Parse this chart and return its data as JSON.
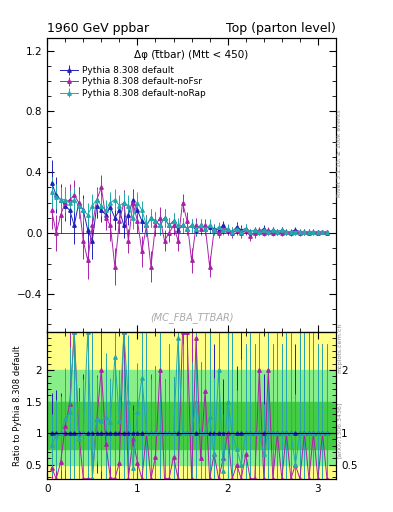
{
  "title_left": "1960 GeV ppbar",
  "title_right": "Top (parton level)",
  "annotation": "Δφ (t̅tbar) (Mtt < 450)",
  "watermark": "(MC_FBA_TTBAR)",
  "right_label_main": "Rivet 3.1.10, ≥ 100k events",
  "right_label_ratio": "[arXiv:1306.3436]",
  "mcplots_label": "mcplots.cern.ch",
  "ylabel_ratio": "Ratio to Pythia 8.308 default",
  "xlim": [
    0,
    3.2
  ],
  "ylim_main": [
    -0.65,
    1.28
  ],
  "ylim_ratio": [
    0.28,
    2.6
  ],
  "series": [
    {
      "label": "Pythia 8.308 default",
      "color": "#2222bb",
      "marker": "^",
      "x": [
        0.05,
        0.1,
        0.15,
        0.2,
        0.25,
        0.3,
        0.35,
        0.4,
        0.45,
        0.5,
        0.55,
        0.6,
        0.65,
        0.7,
        0.75,
        0.8,
        0.85,
        0.9,
        0.95,
        1.0,
        1.05,
        1.1,
        1.15,
        1.2,
        1.25,
        1.3,
        1.35,
        1.4,
        1.45,
        1.5,
        1.55,
        1.6,
        1.65,
        1.7,
        1.75,
        1.8,
        1.85,
        1.9,
        1.95,
        2.0,
        2.05,
        2.1,
        2.15,
        2.2,
        2.25,
        2.3,
        2.35,
        2.4,
        2.45,
        2.5,
        2.55,
        2.6,
        2.65,
        2.7,
        2.75,
        2.8,
        2.85,
        2.9,
        2.95,
        3.0,
        3.05,
        3.1
      ],
      "y": [
        0.33,
        0.25,
        0.22,
        0.18,
        0.15,
        0.05,
        0.2,
        0.15,
        0.02,
        -0.05,
        0.18,
        0.15,
        0.12,
        0.17,
        0.1,
        0.15,
        0.05,
        0.12,
        0.22,
        0.15,
        0.08,
        0.05,
        0.1,
        0.08,
        0.05,
        0.1,
        0.05,
        0.08,
        0.02,
        0.05,
        0.03,
        0.05,
        0.02,
        0.05,
        0.03,
        0.04,
        0.03,
        0.02,
        0.05,
        0.02,
        0.01,
        0.04,
        0.02,
        0.03,
        0.01,
        0.02,
        0.01,
        0.03,
        0.01,
        0.02,
        0.01,
        0.02,
        0.01,
        0.01,
        0.02,
        0.01,
        0.01,
        0.01,
        0.01,
        0.01,
        0.01,
        0.01
      ],
      "yerr": [
        0.15,
        0.12,
        0.1,
        0.1,
        0.1,
        0.12,
        0.1,
        0.1,
        0.12,
        0.12,
        0.08,
        0.08,
        0.08,
        0.08,
        0.08,
        0.08,
        0.08,
        0.07,
        0.07,
        0.07,
        0.07,
        0.07,
        0.06,
        0.06,
        0.06,
        0.06,
        0.05,
        0.05,
        0.05,
        0.05,
        0.04,
        0.04,
        0.04,
        0.04,
        0.04,
        0.04,
        0.03,
        0.03,
        0.03,
        0.03,
        0.03,
        0.03,
        0.03,
        0.03,
        0.02,
        0.02,
        0.02,
        0.02,
        0.02,
        0.02,
        0.02,
        0.02,
        0.02,
        0.02,
        0.02,
        0.02,
        0.02,
        0.02,
        0.02,
        0.01,
        0.01,
        0.01
      ]
    },
    {
      "label": "Pythia 8.308 default-noFsr",
      "color": "#aa22aa",
      "marker": "^",
      "x": [
        0.05,
        0.1,
        0.15,
        0.2,
        0.25,
        0.3,
        0.35,
        0.4,
        0.45,
        0.5,
        0.55,
        0.6,
        0.65,
        0.7,
        0.75,
        0.8,
        0.85,
        0.9,
        0.95,
        1.0,
        1.05,
        1.1,
        1.15,
        1.2,
        1.25,
        1.3,
        1.35,
        1.4,
        1.45,
        1.5,
        1.55,
        1.6,
        1.65,
        1.7,
        1.75,
        1.8,
        1.85,
        1.9,
        1.95,
        2.0,
        2.05,
        2.1,
        2.15,
        2.2,
        2.25,
        2.3,
        2.35,
        2.4,
        2.45,
        2.5,
        2.55,
        2.6,
        2.65,
        2.7,
        2.75,
        2.8,
        2.85,
        2.9,
        2.95,
        3.0,
        3.05,
        3.1
      ],
      "y": [
        0.15,
        0.0,
        0.12,
        0.2,
        0.22,
        0.25,
        0.2,
        -0.05,
        -0.18,
        0.05,
        0.22,
        0.3,
        0.1,
        0.05,
        -0.22,
        0.08,
        0.2,
        -0.05,
        0.2,
        0.08,
        -0.12,
        0.05,
        -0.22,
        0.05,
        0.1,
        -0.05,
        0.0,
        0.05,
        -0.05,
        0.2,
        0.08,
        -0.18,
        0.05,
        0.03,
        0.05,
        -0.22,
        0.02,
        0.0,
        0.03,
        0.02,
        0.0,
        0.02,
        0.0,
        0.02,
        -0.02,
        0.0,
        0.02,
        0.0,
        0.02,
        0.0,
        0.01,
        0.0,
        0.01,
        0.0,
        0.01,
        0.0,
        0.01,
        0.0,
        0.01,
        0.0,
        0.01,
        0.0
      ],
      "yerr": [
        0.12,
        0.12,
        0.12,
        0.1,
        0.1,
        0.1,
        0.1,
        0.12,
        0.12,
        0.1,
        0.08,
        0.08,
        0.08,
        0.1,
        0.12,
        0.08,
        0.08,
        0.08,
        0.08,
        0.08,
        0.1,
        0.07,
        0.1,
        0.07,
        0.07,
        0.07,
        0.06,
        0.06,
        0.07,
        0.06,
        0.06,
        0.08,
        0.05,
        0.04,
        0.04,
        0.07,
        0.03,
        0.03,
        0.03,
        0.03,
        0.03,
        0.03,
        0.03,
        0.03,
        0.03,
        0.03,
        0.02,
        0.02,
        0.02,
        0.02,
        0.02,
        0.02,
        0.02,
        0.02,
        0.02,
        0.02,
        0.02,
        0.01,
        0.01,
        0.01,
        0.01,
        0.01
      ]
    },
    {
      "label": "Pythia 8.308 default-noRap",
      "color": "#22aaaa",
      "marker": "^",
      "x": [
        0.05,
        0.1,
        0.15,
        0.2,
        0.25,
        0.3,
        0.35,
        0.4,
        0.45,
        0.5,
        0.55,
        0.6,
        0.65,
        0.7,
        0.75,
        0.8,
        0.85,
        0.9,
        0.95,
        1.0,
        1.05,
        1.1,
        1.15,
        1.2,
        1.25,
        1.3,
        1.35,
        1.4,
        1.45,
        1.5,
        1.55,
        1.6,
        1.65,
        1.7,
        1.75,
        1.8,
        1.85,
        1.9,
        1.95,
        2.0,
        2.05,
        2.1,
        2.15,
        2.2,
        2.25,
        2.3,
        2.35,
        2.4,
        2.45,
        2.5,
        2.55,
        2.6,
        2.65,
        2.7,
        2.75,
        2.8,
        2.85,
        2.9,
        2.95,
        3.0,
        3.05,
        3.1
      ],
      "y": [
        0.27,
        0.24,
        0.22,
        0.22,
        0.2,
        0.22,
        0.18,
        0.15,
        0.12,
        0.18,
        0.22,
        0.18,
        0.15,
        0.2,
        0.22,
        0.18,
        0.2,
        0.18,
        0.1,
        0.2,
        0.15,
        0.05,
        0.1,
        0.08,
        0.05,
        0.1,
        0.05,
        0.08,
        0.05,
        0.05,
        0.03,
        0.05,
        0.03,
        0.05,
        0.03,
        0.05,
        0.02,
        0.04,
        0.02,
        0.03,
        0.01,
        0.03,
        0.01,
        0.03,
        0.01,
        0.02,
        0.01,
        0.02,
        0.01,
        0.02,
        0.01,
        0.02,
        0.01,
        0.01,
        0.01,
        0.01,
        0.01,
        0.01,
        0.01,
        0.01,
        0.01,
        0.01
      ],
      "yerr": [
        0.1,
        0.08,
        0.08,
        0.08,
        0.08,
        0.08,
        0.08,
        0.08,
        0.08,
        0.08,
        0.07,
        0.07,
        0.07,
        0.07,
        0.07,
        0.07,
        0.07,
        0.07,
        0.07,
        0.07,
        0.06,
        0.06,
        0.06,
        0.06,
        0.06,
        0.06,
        0.05,
        0.05,
        0.05,
        0.05,
        0.04,
        0.04,
        0.04,
        0.04,
        0.04,
        0.04,
        0.03,
        0.03,
        0.03,
        0.03,
        0.03,
        0.03,
        0.03,
        0.03,
        0.02,
        0.02,
        0.02,
        0.02,
        0.02,
        0.02,
        0.02,
        0.02,
        0.02,
        0.02,
        0.02,
        0.02,
        0.02,
        0.02,
        0.02,
        0.01,
        0.01,
        0.01
      ]
    }
  ],
  "band_yellow": [
    0.28,
    2.6
  ],
  "band_green_outer": [
    0.5,
    2.0
  ],
  "band_green_inner": [
    0.75,
    1.5
  ],
  "band_yellow_color": "#ffff88",
  "band_green_outer_color": "#88ee88",
  "band_green_inner_color": "#44cc44"
}
